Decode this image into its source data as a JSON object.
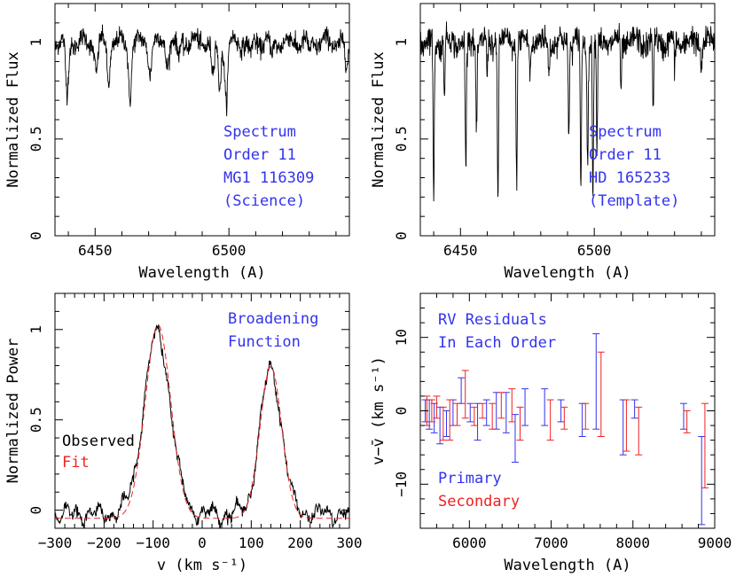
{
  "chart_data": [
    {
      "type": "line",
      "xlabel": "Wavelength (A)",
      "ylabel": "Normalized Flux",
      "xlim": [
        6435,
        6545
      ],
      "ylim": [
        0,
        1.2
      ],
      "xticks": [
        6450,
        6500
      ],
      "yticks": [
        0,
        0.5,
        1
      ],
      "ytick_labels": [
        "0",
        "0.5",
        "1"
      ],
      "annotation": [
        "Spectrum",
        "Order 11",
        "MG1 116309",
        "(Science)"
      ],
      "annotation_color": "#3333ee",
      "line_color": "#000000",
      "absorption_lines": [
        {
          "x": 6439.5,
          "y": 0.72
        },
        {
          "x": 6450.5,
          "y": 0.85
        },
        {
          "x": 6455.0,
          "y": 0.8
        },
        {
          "x": 6463.0,
          "y": 0.73
        },
        {
          "x": 6470.5,
          "y": 0.85
        },
        {
          "x": 6477.0,
          "y": 0.9
        },
        {
          "x": 6481.0,
          "y": 0.92
        },
        {
          "x": 6494.0,
          "y": 0.82
        },
        {
          "x": 6496.5,
          "y": 0.78
        },
        {
          "x": 6499.0,
          "y": 0.7
        },
        {
          "x": 6508.0,
          "y": 0.92
        },
        {
          "x": 6516.0,
          "y": 0.93
        },
        {
          "x": 6530.0,
          "y": 0.94
        },
        {
          "x": 6544.0,
          "y": 0.85
        }
      ]
    },
    {
      "type": "line",
      "xlabel": "Wavelength (A)",
      "ylabel": "Normalized Flux",
      "xlim": [
        6435,
        6545
      ],
      "ylim": [
        0,
        1.2
      ],
      "xticks": [
        6450,
        6500
      ],
      "yticks": [
        0,
        0.5,
        1
      ],
      "ytick_labels": [
        "0",
        "0.5",
        "1"
      ],
      "annotation": [
        "Spectrum",
        "Order 11",
        "HD 165233",
        "(Template)"
      ],
      "annotation_color": "#3333ee",
      "line_color": "#000000",
      "absorption_lines": [
        {
          "x": 6440.0,
          "y": 0.2
        },
        {
          "x": 6444.0,
          "y": 0.75
        },
        {
          "x": 6452.0,
          "y": 0.3
        },
        {
          "x": 6456.0,
          "y": 0.55
        },
        {
          "x": 6460.0,
          "y": 0.8
        },
        {
          "x": 6464.0,
          "y": 0.2
        },
        {
          "x": 6471.0,
          "y": 0.3
        },
        {
          "x": 6476.0,
          "y": 0.85
        },
        {
          "x": 6483.0,
          "y": 0.85
        },
        {
          "x": 6490.5,
          "y": 0.55
        },
        {
          "x": 6495.0,
          "y": 0.2
        },
        {
          "x": 6497.5,
          "y": 0.35
        },
        {
          "x": 6499.5,
          "y": 0.25
        },
        {
          "x": 6501.0,
          "y": 0.45
        },
        {
          "x": 6510.0,
          "y": 0.75
        },
        {
          "x": 6522.0,
          "y": 0.65
        },
        {
          "x": 6530.0,
          "y": 0.85
        },
        {
          "x": 6540.0,
          "y": 0.85
        }
      ]
    },
    {
      "type": "line",
      "xlabel": "v (km s⁻¹)",
      "ylabel": "Normalized Power",
      "xlim": [
        -300,
        300
      ],
      "ylim": [
        -0.1,
        1.2
      ],
      "xticks": [
        -300,
        -200,
        -100,
        0,
        100,
        200,
        300
      ],
      "yticks": [
        0,
        0.5,
        1
      ],
      "ytick_labels": [
        "0",
        "0.5",
        "1"
      ],
      "annotation": [
        "Broadening",
        "Function"
      ],
      "annotation_color": "#3333ee",
      "legend": {
        "location": "left",
        "entries": [
          {
            "label": "Observed",
            "color": "#000000"
          },
          {
            "label": "Fit",
            "color": "#ee2222"
          }
        ]
      },
      "series": [
        {
          "name": "Observed",
          "color": "#000000",
          "style": "solid",
          "peaks": [
            {
              "center": -92,
              "height": 1.0,
              "sigma": 27
            },
            {
              "center": 140,
              "height": 0.8,
              "sigma": 22
            }
          ],
          "baseline": -0.02
        },
        {
          "name": "Fit",
          "color": "#ee2222",
          "style": "dashed",
          "peaks": [
            {
              "center": -90,
              "height": 1.07,
              "sigma": 26
            },
            {
              "center": 140,
              "height": 0.84,
              "sigma": 22
            }
          ],
          "baseline": -0.045
        }
      ]
    },
    {
      "type": "scatter",
      "xlabel": "Wavelength (A)",
      "ylabel": "v−v̄ (km s⁻¹)",
      "xlim": [
        5400,
        9000
      ],
      "ylim": [
        -16,
        16
      ],
      "xticks": [
        6000,
        7000,
        8000,
        9000
      ],
      "yticks": [
        -10,
        0,
        10
      ],
      "ytick_labels": [
        "−10",
        "0",
        "10"
      ],
      "annotation": [
        "RV Residuals",
        "In Each Order"
      ],
      "annotation_color": "#3333ee",
      "legend": {
        "location": "bottom-left",
        "entries": [
          {
            "label": "Primary",
            "color": "#3333ee"
          },
          {
            "label": "Secondary",
            "color": "#ee2222"
          }
        ]
      },
      "series": [
        {
          "name": "Primary",
          "color": "#3333ee",
          "points": [
            {
              "x": 5460,
              "low": -1.5,
              "high": 1.5
            },
            {
              "x": 5510,
              "low": -2.5,
              "high": 1.5
            },
            {
              "x": 5570,
              "low": -3.0,
              "high": 1.0
            },
            {
              "x": 5640,
              "low": -4.5,
              "high": 0.5
            },
            {
              "x": 5720,
              "low": -3.5,
              "high": 0.0
            },
            {
              "x": 5800,
              "low": -2.0,
              "high": 1.5
            },
            {
              "x": 5900,
              "low": 1.0,
              "high": 4.5
            },
            {
              "x": 6010,
              "low": -1.5,
              "high": 1.0
            },
            {
              "x": 6100,
              "low": -4.0,
              "high": 1.0
            },
            {
              "x": 6210,
              "low": -2.0,
              "high": 1.5
            },
            {
              "x": 6330,
              "low": -2.5,
              "high": 2.5
            },
            {
              "x": 6450,
              "low": -3.0,
              "high": 2.5
            },
            {
              "x": 6560,
              "low": -7.0,
              "high": -0.5
            },
            {
              "x": 6680,
              "low": -2.0,
              "high": 3.0
            },
            {
              "x": 6920,
              "low": -2.0,
              "high": 3.0
            },
            {
              "x": 7120,
              "low": -1.5,
              "high": 1.5
            },
            {
              "x": 7380,
              "low": -3.5,
              "high": 1.0
            },
            {
              "x": 7550,
              "low": -2.5,
              "high": 10.5
            },
            {
              "x": 7880,
              "low": -6.0,
              "high": 1.5
            },
            {
              "x": 8020,
              "low": -1.0,
              "high": 1.5
            },
            {
              "x": 8620,
              "low": -2.5,
              "high": 1.0
            },
            {
              "x": 8840,
              "low": -15.5,
              "high": -3.5
            }
          ]
        },
        {
          "name": "Secondary",
          "color": "#ee2222",
          "points": [
            {
              "x": 5480,
              "low": -2.0,
              "high": 2.0
            },
            {
              "x": 5540,
              "low": -1.5,
              "high": 1.5
            },
            {
              "x": 5600,
              "low": -1.0,
              "high": 2.0
            },
            {
              "x": 5680,
              "low": -4.0,
              "high": 0.5
            },
            {
              "x": 5760,
              "low": -4.0,
              "high": 1.5
            },
            {
              "x": 5850,
              "low": -2.0,
              "high": 1.0
            },
            {
              "x": 5950,
              "low": -1.0,
              "high": 5.5
            },
            {
              "x": 6060,
              "low": -2.0,
              "high": 0.5
            },
            {
              "x": 6160,
              "low": -1.0,
              "high": 1.0
            },
            {
              "x": 6280,
              "low": -2.5,
              "high": 1.0
            },
            {
              "x": 6390,
              "low": -1.0,
              "high": 2.5
            },
            {
              "x": 6520,
              "low": -1.5,
              "high": 3.0
            },
            {
              "x": 6620,
              "low": -4.0,
              "high": 0.5
            },
            {
              "x": 6990,
              "low": -4.0,
              "high": 1.5
            },
            {
              "x": 7160,
              "low": -2.5,
              "high": 0.5
            },
            {
              "x": 7420,
              "low": -2.5,
              "high": 1.0
            },
            {
              "x": 7610,
              "low": -3.5,
              "high": 8.0
            },
            {
              "x": 7920,
              "low": -5.5,
              "high": 1.5
            },
            {
              "x": 8070,
              "low": -6.0,
              "high": 0.5
            },
            {
              "x": 8660,
              "low": -3.0,
              "high": 0.0
            },
            {
              "x": 8880,
              "low": -10.5,
              "high": 1.0
            }
          ]
        }
      ]
    }
  ]
}
